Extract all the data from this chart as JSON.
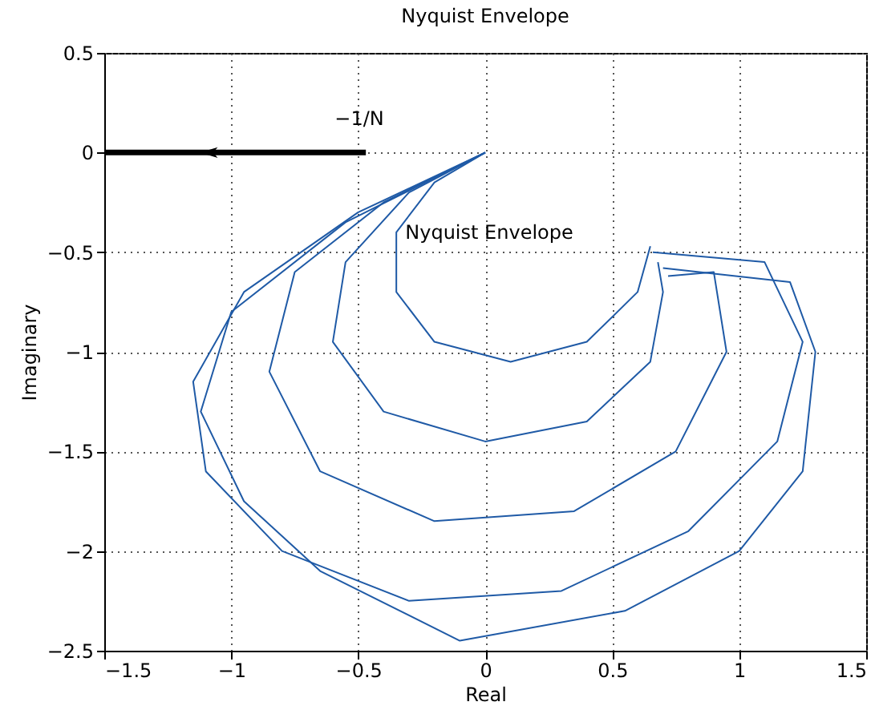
{
  "chart_data": {
    "type": "line",
    "title": "Nyquist Envelope",
    "xlabel": "Real",
    "ylabel": "Imaginary",
    "xlim": [
      -1.5,
      1.5
    ],
    "xticks": [
      -1.5,
      -1,
      -0.5,
      0,
      0.5,
      1,
      1.5
    ],
    "ylim": [
      -2.5,
      0.5
    ],
    "yticks": [
      -2.5,
      -2,
      -1.5,
      -1,
      -0.5,
      0,
      0.5
    ],
    "grid": true,
    "line_style": "solid",
    "marker": "none",
    "series": [
      {
        "color": "#000000",
        "x": [
          -0.47,
          -1.5
        ],
        "values": [
          0,
          0
        ]
      },
      {
        "color": "#1f5aa6",
        "x": [
          0,
          -0.2,
          -0.35,
          -0.35,
          -0.2,
          0.1,
          0.4,
          0.6,
          0.65
        ],
        "values": [
          0,
          -0.15,
          -0.4,
          -0.7,
          -0.95,
          -1.05,
          -0.95,
          -0.7,
          -0.47
        ]
      },
      {
        "color": "#1f5aa6",
        "x": [
          0,
          -0.3,
          -0.55,
          -0.6,
          -0.4,
          0,
          0.4,
          0.65,
          0.7,
          0.68
        ],
        "values": [
          0,
          -0.2,
          -0.55,
          -0.95,
          -1.3,
          -1.45,
          -1.35,
          -1.05,
          -0.7,
          -0.55
        ]
      },
      {
        "color": "#1f5aa6",
        "x": [
          0,
          -0.4,
          -0.75,
          -0.85,
          -0.65,
          -0.2,
          0.35,
          0.75,
          0.95,
          0.9,
          0.72
        ],
        "values": [
          0,
          -0.25,
          -0.6,
          -1.1,
          -1.6,
          -1.85,
          -1.8,
          -1.5,
          -1,
          -0.6,
          -0.62
        ]
      },
      {
        "color": "#1f5aa6",
        "x": [
          0,
          -0.5,
          -0.95,
          -1.15,
          -1.1,
          -0.8,
          -0.3,
          0.3,
          0.8,
          1.15,
          1.25,
          1.1,
          0.66
        ],
        "values": [
          0,
          -0.3,
          -0.7,
          -1.15,
          -1.6,
          -2,
          -2.25,
          -2.2,
          -1.9,
          -1.45,
          -0.95,
          -0.55,
          -0.5
        ]
      },
      {
        "color": "#1f5aa6",
        "x": [
          0,
          -0.55,
          -1,
          -1.12,
          -0.95,
          -0.65,
          -0.1,
          0.55,
          1,
          1.25,
          1.3,
          1.2,
          0.7
        ],
        "values": [
          0,
          -0.35,
          -0.8,
          -1.3,
          -1.75,
          -2.1,
          -2.45,
          -2.3,
          -2,
          -1.6,
          -1,
          -0.65,
          -0.58
        ]
      }
    ],
    "annotations": [
      "−1/N",
      "Nyquist Envelope"
    ]
  }
}
